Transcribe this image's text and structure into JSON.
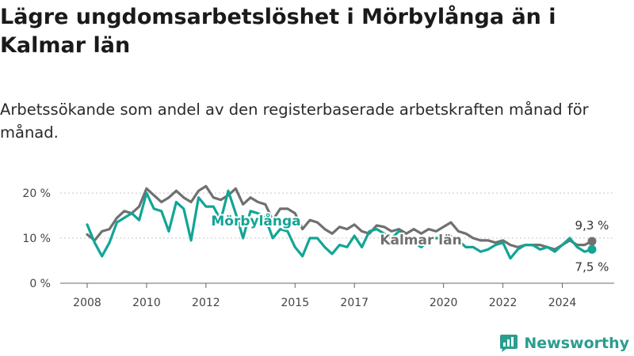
{
  "title": "Lägre ungdomsarbetslöshet i Mörbylånga än i Kalmar län",
  "subtitle": "Arbetssökande som andel av den registerbaserade arbetskraften månad för månad.",
  "brand": {
    "name": "Newsworthy",
    "icon": "newsworthy-logo-icon"
  },
  "colors": {
    "morbylanga": "#12a596",
    "kalmar": "#707070",
    "grid": "#c4c4c4"
  },
  "chart_data": {
    "type": "line",
    "title": "Lägre ungdomsarbetslöshet i Mörbylånga än i Kalmar län",
    "xlabel": "",
    "ylabel": "",
    "xlim": [
      2008.0,
      2025.0
    ],
    "ylim": [
      0,
      20
    ],
    "yticks": [
      {
        "value": 0,
        "label": "0 %"
      },
      {
        "value": 10,
        "label": "10 %"
      },
      {
        "value": 20,
        "label": "20 %"
      }
    ],
    "xticks": [
      {
        "value": 2008,
        "label": "2008"
      },
      {
        "value": 2010,
        "label": "2010"
      },
      {
        "value": 2012,
        "label": "2012"
      },
      {
        "value": 2015,
        "label": "2015"
      },
      {
        "value": 2017,
        "label": "2017"
      },
      {
        "value": 2020,
        "label": "2020"
      },
      {
        "value": 2022,
        "label": "2022"
      },
      {
        "value": 2024,
        "label": "2024"
      }
    ],
    "grid": true,
    "series": [
      {
        "name": "Kalmar län",
        "color": "#707070",
        "end_label": "9,3 %",
        "x": [
          2008.0,
          2008.25,
          2008.5,
          2008.75,
          2009.0,
          2009.25,
          2009.5,
          2009.75,
          2010.0,
          2010.25,
          2010.5,
          2010.75,
          2011.0,
          2011.25,
          2011.5,
          2011.75,
          2012.0,
          2012.25,
          2012.5,
          2012.75,
          2013.0,
          2013.25,
          2013.5,
          2013.75,
          2014.0,
          2014.25,
          2014.5,
          2014.75,
          2015.0,
          2015.25,
          2015.5,
          2015.75,
          2016.0,
          2016.25,
          2016.5,
          2016.75,
          2017.0,
          2017.25,
          2017.5,
          2017.75,
          2018.0,
          2018.25,
          2018.5,
          2018.75,
          2019.0,
          2019.25,
          2019.5,
          2019.75,
          2020.0,
          2020.25,
          2020.5,
          2020.75,
          2021.0,
          2021.25,
          2021.5,
          2021.75,
          2022.0,
          2022.25,
          2022.5,
          2022.75,
          2023.0,
          2023.25,
          2023.5,
          2023.75,
          2024.0,
          2024.25,
          2024.5,
          2024.75,
          2025.0
        ],
        "values": [
          10.8,
          9.5,
          11.5,
          12.0,
          14.5,
          16.0,
          15.5,
          17.0,
          21.0,
          19.5,
          18.0,
          19.0,
          20.5,
          19.0,
          18.0,
          20.5,
          21.5,
          19.0,
          18.5,
          19.5,
          21.0,
          17.5,
          19.0,
          18.0,
          17.5,
          14.0,
          16.5,
          16.5,
          15.5,
          12.0,
          14.0,
          13.5,
          12.0,
          11.0,
          12.5,
          12.0,
          13.0,
          11.5,
          11.0,
          12.8,
          12.5,
          11.5,
          12.0,
          11.0,
          12.0,
          11.0,
          12.0,
          11.5,
          12.5,
          13.5,
          11.5,
          11.0,
          10.0,
          9.5,
          9.5,
          9.0,
          9.5,
          8.5,
          8.0,
          8.5,
          8.5,
          8.5,
          8.0,
          7.5,
          8.5,
          9.5,
          8.5,
          8.5,
          9.3
        ]
      },
      {
        "name": "Mörbylånga",
        "color": "#12a596",
        "end_label": "7,5 %",
        "x": [
          2008.0,
          2008.25,
          2008.5,
          2008.75,
          2009.0,
          2009.25,
          2009.5,
          2009.75,
          2010.0,
          2010.25,
          2010.5,
          2010.75,
          2011.0,
          2011.25,
          2011.5,
          2011.75,
          2012.0,
          2012.25,
          2012.5,
          2012.75,
          2013.0,
          2013.25,
          2013.5,
          2013.75,
          2014.0,
          2014.25,
          2014.5,
          2014.75,
          2015.0,
          2015.25,
          2015.5,
          2015.75,
          2016.0,
          2016.25,
          2016.5,
          2016.75,
          2017.0,
          2017.25,
          2017.5,
          2017.75,
          2018.0,
          2018.25,
          2018.5,
          2018.75,
          2019.0,
          2019.25,
          2019.5,
          2019.75,
          2020.0,
          2020.25,
          2020.5,
          2020.75,
          2021.0,
          2021.25,
          2021.5,
          2021.75,
          2022.0,
          2022.25,
          2022.5,
          2022.75,
          2023.0,
          2023.25,
          2023.5,
          2023.75,
          2024.0,
          2024.25,
          2024.5,
          2024.75,
          2025.0
        ],
        "values": [
          13.0,
          9.0,
          6.0,
          9.0,
          13.5,
          14.5,
          15.5,
          14.0,
          20.0,
          16.5,
          16.0,
          11.5,
          18.0,
          16.5,
          9.5,
          19.0,
          17.0,
          17.0,
          14.0,
          20.5,
          15.5,
          10.0,
          16.0,
          15.5,
          14.5,
          10.0,
          12.0,
          11.5,
          8.0,
          6.0,
          10.0,
          10.0,
          8.0,
          6.5,
          8.5,
          8.0,
          10.5,
          8.0,
          11.5,
          12.0,
          11.0,
          10.0,
          11.5,
          10.0,
          9.0,
          8.0,
          9.5,
          10.0,
          10.0,
          10.5,
          9.5,
          8.0,
          8.0,
          7.0,
          7.5,
          8.5,
          9.0,
          5.5,
          7.5,
          8.5,
          8.5,
          7.5,
          8.0,
          7.0,
          8.5,
          10.0,
          8.0,
          7.0,
          7.5
        ]
      }
    ],
    "annotations": [
      {
        "text": "Mörbylånga",
        "series": "Mörbylånga"
      },
      {
        "text": "Kalmar län",
        "series": "Kalmar län"
      }
    ]
  }
}
